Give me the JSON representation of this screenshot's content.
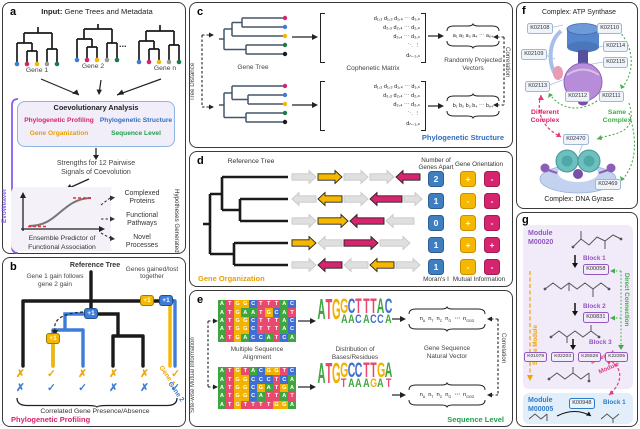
{
  "colors": {
    "pink": "#D6246E",
    "yellow": "#F5B700",
    "orange_text": "#E8A000",
    "blue": "#2F6FBF",
    "green": "#1FA04B",
    "purple": "#8B5CF6",
    "module_purple": "#9256BE",
    "module_blue": "#2E7CC6",
    "gray_arrow": "#DFDFDF",
    "base_colors": {
      "A": "#3FA63F",
      "T": "#E84A6F",
      "G": "#F2B200",
      "C": "#3F6FD1"
    }
  },
  "panel_a": {
    "label": "a",
    "title_bold": "Input:",
    "title_rest": " Gene Trees and Metadata",
    "gene1": "Gene 1",
    "gene2": "Gene 2",
    "gene_n": "Gene n",
    "ellipsis": "...",
    "evoweaver": "EvoWeaver",
    "coevo_title": "Coevolutionary Analysis",
    "method_pp": "Phylogenetic Profiling",
    "method_go": "Gene Organization",
    "method_ps": "Phylogenetic Structure",
    "method_sl": "Sequence Level",
    "strengths_line1": "Strengths for 12 Pairwise",
    "strengths_line2": "Signals of Coevolution",
    "ensemble_line1": "Ensemble Predictor of",
    "ensemble_line2": "Functional Association",
    "hyp1a": "Complexed",
    "hyp1b": "Proteins",
    "hyp2a": "Functional",
    "hyp2b": "Pathways",
    "hyp3a": "Novel",
    "hyp3b": "Processes",
    "hypotheses_generated": "Hypotheses Generated"
  },
  "panel_b": {
    "label": "b",
    "reference_tree": "Reference Tree",
    "gain_note_1": "Gene 1 gain follows",
    "gain_note_2": "gene 2 gain",
    "gained_lost": "Genes gained/lost together",
    "plus_one": "+1",
    "gene1_marks": [
      "✗",
      "✓",
      "✗",
      "✗",
      "✗",
      "✓"
    ],
    "gene2_marks": [
      "✗",
      "✓",
      "✓",
      "✗",
      "✗",
      "✓"
    ],
    "gene1_label": "Gene 1",
    "gene2_label": "Gene 2",
    "brace_caption": "Correlated Gene Presence/Absence",
    "footer": "Phylogenetic Profiling"
  },
  "panel_c": {
    "label": "c",
    "tree_distance": "Tree Distance",
    "gene_tree": "Gene Tree",
    "cophenetic_matrix": "Cophenetic Matrix",
    "rpv_1": "Randomly Projected",
    "rpv_2": "Vectors",
    "matrix_rows": [
      "d₁,₂  d₁,₃  d₁,₄  ⋯  d₁,ₙ",
      "d₂,₃  d₂,₄  ⋯  d₂,ₙ",
      "d₃,₄  ⋯  d₃,ₙ",
      "⋱   ⋮",
      "dₙ₋₁,ₙ"
    ],
    "vector_a": "a₁  a₂  a₃  a₄  ⋯  a₆₄",
    "vector_b": "b₁  b₂  b₃  b₄  ⋯  b₆₄",
    "correlation": "Correlation",
    "footer": "Phylogenetic Structure"
  },
  "panel_d": {
    "label": "d",
    "reference_tree": "Reference Tree",
    "header_nga_1": "Number of",
    "header_nga_2": "Genes Apart",
    "header_go": "Gene Orientation",
    "genes_apart": [
      "2",
      "1",
      "0",
      "1",
      "1"
    ],
    "orientation_a": [
      "+",
      "-",
      "+",
      "+",
      "-"
    ],
    "orientation_b": [
      "-",
      "-",
      "-",
      "+",
      "-"
    ],
    "morans": "Moran's I",
    "mutual_info": "Mutual Information",
    "footer": "Gene Organization",
    "arrow_rows": [
      [
        {
          "c": "g",
          "d": 1
        },
        {
          "c": "y",
          "d": 1
        },
        {
          "c": "g",
          "d": 1
        },
        {
          "c": "g",
          "d": 1
        },
        {
          "c": "p",
          "d": -1
        }
      ],
      [
        {
          "c": "g",
          "d": -1
        },
        {
          "c": "y",
          "d": -1
        },
        {
          "c": "g",
          "d": 1
        },
        {
          "c": "p",
          "d": -1,
          "w": 32
        },
        {
          "c": "g",
          "d": 1,
          "w": 18
        }
      ],
      [
        {
          "c": "g",
          "d": 1
        },
        {
          "c": "y",
          "d": 1,
          "w": 30
        },
        {
          "c": "p",
          "d": -1,
          "w": 34
        },
        {
          "c": "g",
          "d": -1,
          "w": 28
        }
      ],
      [
        {
          "c": "y",
          "d": 1
        },
        {
          "c": "g",
          "d": -1
        },
        {
          "c": "p",
          "d": 1,
          "w": 34
        },
        {
          "c": "g",
          "d": 1,
          "w": 30
        }
      ],
      [
        {
          "c": "g",
          "d": 1
        },
        {
          "c": "p",
          "d": -1
        },
        {
          "c": "g",
          "d": -1
        },
        {
          "c": "y",
          "d": -1
        },
        {
          "c": "g",
          "d": 1
        }
      ]
    ]
  },
  "panel_e": {
    "label": "e",
    "sitewise": "Site-wise Mutual Information",
    "msa1_rows": [
      "ATGGCTTTAC",
      "ATGAATGCAT",
      "ATGGCTTTAC",
      "ATGGCTTTAC",
      "ATGACCATCA"
    ],
    "msa2_rows": [
      "ATGTACGGTC",
      "ATGGCCCTCA",
      "ATGGCGATGA",
      "ATGGCATTAT",
      "ATGTTTTGGA"
    ],
    "msa_label_1": "Multiple Sequence",
    "msa_label_2": "Alignment",
    "dist_label_1": "Distribution of",
    "dist_label_2": "Bases/Residues",
    "logo1": {
      "row1": "ATGGCTTTAC",
      "row2": "   AACACCA"
    },
    "logo2": {
      "row1": "ATGGCCTTGA",
      "row2": "   TAAAGAT"
    },
    "vector_items": [
      [
        "n",
        "A"
      ],
      [
        "n",
        "T"
      ],
      [
        "n",
        "C"
      ],
      [
        "n",
        "G"
      ],
      [
        "⋯",
        ""
      ],
      [
        "n",
        "GGG"
      ]
    ],
    "nv_label_1": "Gene Sequence",
    "nv_label_2": "Natural Vector",
    "correlation": "Correlation",
    "footer": "Sequence Level"
  },
  "panel_f": {
    "label": "f",
    "title": "Complex: ATP Synthase",
    "kos": [
      "K02108",
      "K02110",
      "K02109",
      "K02114",
      "K02115",
      "K02113",
      "K02112",
      "K02111"
    ],
    "ko_2470": "K02470",
    "ko_2469": "K02469",
    "different_1": "Different",
    "different_2": "Complex",
    "same_1": "Same",
    "same_2": "Complex",
    "gyrase_title": "Complex: DNA Gyrase"
  },
  "panel_g": {
    "label": "g",
    "module1_1": "Module",
    "module1_2": "M00020",
    "block1": "Block 1",
    "k00058": "K00058",
    "block2": "Block 2",
    "k00831": "K00831",
    "block3": "Block 3",
    "block3_kos": [
      "K01079",
      "K02203",
      "K25528",
      "K22305"
    ],
    "same_module": "Same Module",
    "direct_connection": "Direct Connection",
    "diff_module_1": "Different",
    "diff_module_2": "Module",
    "module2_1": "Module",
    "module2_2": "M00005",
    "k00948": "K00948",
    "block1b": "Block 1"
  }
}
